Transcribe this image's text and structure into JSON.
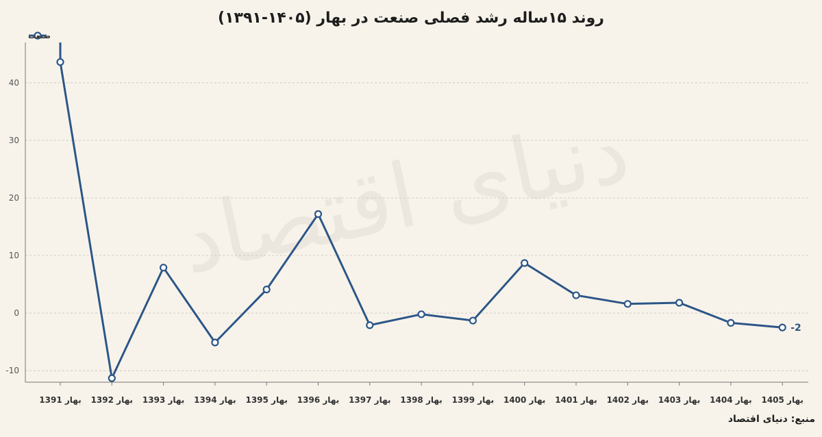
{
  "title": "روند ۱۵ساله رشد فصلی صنعت در بهار (۱۴۰۵-۱۳۹۱)",
  "source": "منبع: دنیای اقتصاد",
  "watermark": "دنیای اقتصاد",
  "colors": {
    "line": "#2c5687",
    "background": "#f7f3eb",
    "grid": "#d0ccc4"
  },
  "chart_data": {
    "type": "line",
    "title": "روند ۱۵ساله رشد فصلی صنعت در بهار (۱۴۰۵-۱۳۹۱)",
    "xlabel": "",
    "ylabel": "",
    "categories": [
      "بهار 1391",
      "بهار 1392",
      "بهار 1393",
      "بهار 1394",
      "بهار 1395",
      "بهار 1396",
      "بهار 1397",
      "بهار 1398",
      "بهار 1399",
      "بهار 1400",
      "بهار 1401",
      "بهار 1402",
      "بهار 1403",
      "بهار 1404",
      "بهار 1405"
    ],
    "series": [
      {
        "name": "صنعت",
        "values": [
          43.6,
          -11.3,
          7.9,
          -5.1,
          4.1,
          17.2,
          -2.1,
          -0.2,
          -1.3,
          8.7,
          3.1,
          1.6,
          1.8,
          -1.7,
          -2.5
        ]
      }
    ],
    "ylim": [
      -12,
      47
    ],
    "yticks": [
      -10,
      0,
      10,
      20,
      30,
      40
    ],
    "grid": true,
    "legend": "top-left",
    "annotations": [
      {
        "category": "بهار 1405",
        "text": "-2"
      }
    ]
  }
}
